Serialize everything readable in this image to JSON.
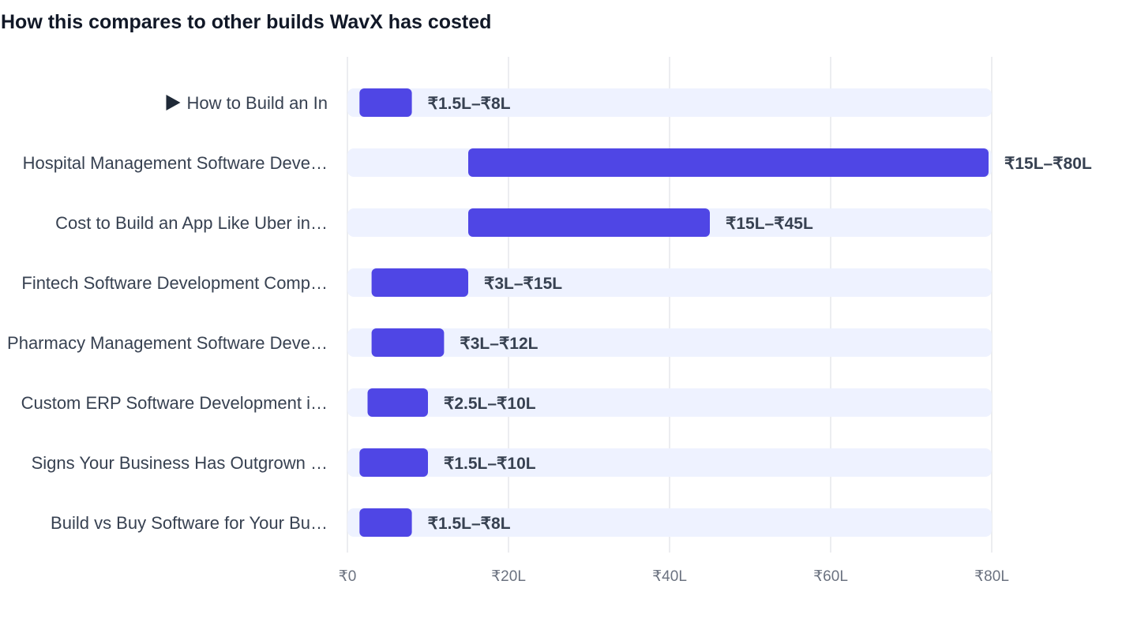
{
  "chart_data": {
    "type": "bar",
    "orientation": "horizontal",
    "subtype": "range",
    "title": "How this compares to other builds WavX has costed",
    "xlabel": "",
    "ylabel": "",
    "xlim": [
      0,
      80
    ],
    "unit": "lakh INR",
    "grid": true,
    "ticks": [
      {
        "value": 0,
        "label": "₹0"
      },
      {
        "value": 20,
        "label": "₹20L"
      },
      {
        "value": 40,
        "label": "₹40L"
      },
      {
        "value": 60,
        "label": "₹60L"
      },
      {
        "value": 80,
        "label": "₹80L"
      }
    ],
    "categories": [
      "How to Build an In",
      "Hospital Management Software Deve…",
      "Cost to Build an App Like Uber in…",
      "Fintech Software Development Comp…",
      "Pharmacy Management Software Deve…",
      "Custom ERP Software Development i…",
      "Signs Your Business Has Outgrown …",
      "Build vs Buy Software for Your Bu…"
    ],
    "ranges": [
      {
        "min": 1.5,
        "max": 8,
        "label": "₹1.5L–₹8L"
      },
      {
        "min": 15,
        "max": 80,
        "label": "₹15L–₹80L"
      },
      {
        "min": 15,
        "max": 45,
        "label": "₹15L–₹45L"
      },
      {
        "min": 3,
        "max": 15,
        "label": "₹3L–₹15L"
      },
      {
        "min": 3,
        "max": 12,
        "label": "₹3L–₹12L"
      },
      {
        "min": 2.5,
        "max": 10,
        "label": "₹2.5L–₹10L"
      },
      {
        "min": 1.5,
        "max": 10,
        "label": "₹1.5L–₹10L"
      },
      {
        "min": 1.5,
        "max": 8,
        "label": "₹1.5L–₹8L"
      }
    ],
    "first_item_marker": "triangle-right-icon",
    "colors": {
      "bar": "#4f46e5",
      "track": "#eef2ff",
      "grid": "#e5e7eb",
      "label": "#374151",
      "tick": "#6b7280",
      "title": "#111827"
    }
  }
}
